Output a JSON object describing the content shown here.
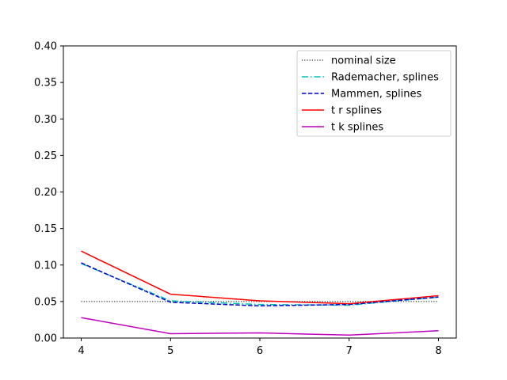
{
  "chart_data": {
    "type": "line",
    "title": "",
    "xlabel": "",
    "ylabel": "",
    "x": [
      4,
      5,
      6,
      7,
      8
    ],
    "xlim": [
      3.8,
      8.2
    ],
    "ylim": [
      0.0,
      0.4
    ],
    "x_ticks": [
      "4",
      "5",
      "6",
      "7",
      "8"
    ],
    "y_ticks": [
      "0.00",
      "0.05",
      "0.10",
      "0.15",
      "0.20",
      "0.25",
      "0.30",
      "0.35",
      "0.40"
    ],
    "grid": false,
    "legend_position": "top-right",
    "series": [
      {
        "name": "nominal size",
        "values": [
          0.05,
          0.05,
          0.05,
          0.05,
          0.05
        ],
        "color": "#000000",
        "style": "dotted"
      },
      {
        "name": "Rademacher, splines",
        "values": [
          0.102,
          0.051,
          0.046,
          0.045,
          0.056
        ],
        "color": "#00bfbf",
        "style": "dashdot"
      },
      {
        "name": "Mammen, splines",
        "values": [
          0.103,
          0.049,
          0.044,
          0.046,
          0.056
        ],
        "color": "#0000cc",
        "style": "dashed"
      },
      {
        "name": "t r splines",
        "values": [
          0.119,
          0.06,
          0.051,
          0.047,
          0.058
        ],
        "color": "#ff0000",
        "style": "solid"
      },
      {
        "name": "t k splines",
        "values": [
          0.028,
          0.006,
          0.007,
          0.004,
          0.01
        ],
        "color": "#bf00bf",
        "style": "solid"
      }
    ]
  }
}
